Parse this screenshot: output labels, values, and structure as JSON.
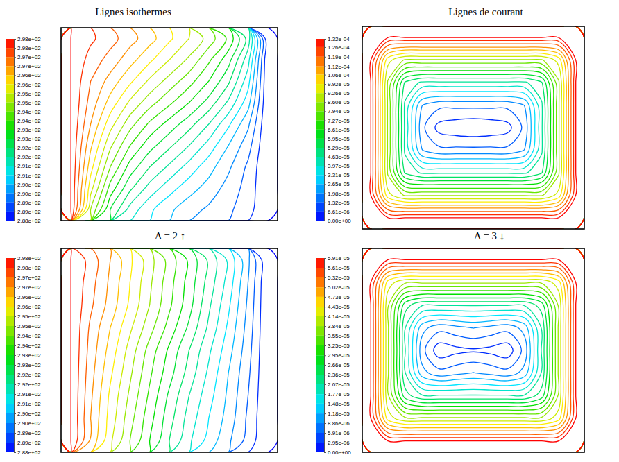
{
  "column_titles": [
    "Lignes isothermes",
    "Lignes de courant"
  ],
  "row_labels": [
    "A = 2 ↑",
    "A = 3 ↓"
  ],
  "chart_data": [
    {
      "type": "contour",
      "grid": [
        [
          298,
          297.6,
          297.2,
          296.7,
          296.2,
          295.6,
          295.0,
          294.3,
          293.4,
          291.8,
          288
        ],
        [
          298,
          297.3,
          296.8,
          296.2,
          295.6,
          295.0,
          294.4,
          293.6,
          292.7,
          291.2,
          288
        ],
        [
          298,
          297.0,
          296.3,
          295.6,
          294.9,
          294.3,
          293.7,
          293.0,
          292.1,
          290.7,
          288
        ],
        [
          298,
          296.8,
          295.8,
          294.9,
          294.2,
          293.6,
          293.0,
          292.3,
          291.4,
          290.2,
          288
        ],
        [
          298,
          296.5,
          295.2,
          294.2,
          293.4,
          292.8,
          292.2,
          291.5,
          290.6,
          289.6,
          288
        ],
        [
          298,
          296.1,
          294.6,
          293.5,
          292.7,
          292.1,
          291.5,
          290.8,
          290.0,
          289.2,
          288
        ],
        [
          298,
          295.7,
          294.0,
          292.8,
          292.0,
          291.4,
          290.8,
          290.2,
          289.6,
          288.9,
          288
        ],
        [
          298,
          295.2,
          293.3,
          292.1,
          291.3,
          290.7,
          290.2,
          289.8,
          289.3,
          288.8,
          288
        ],
        [
          298,
          294.5,
          292.5,
          291.3,
          290.6,
          290.1,
          289.7,
          289.4,
          289.1,
          288.7,
          288
        ]
      ],
      "colorbar": {
        "range": [
          288,
          298
        ],
        "ticks": [
          {
            "value": 298,
            "label": "2.98e+02"
          },
          {
            "value": 297.5,
            "label": "2.98e+02"
          },
          {
            "value": 297,
            "label": "2.97e+02"
          },
          {
            "value": 296.5,
            "label": "2.97e+02"
          },
          {
            "value": 296,
            "label": "2.96e+02"
          },
          {
            "value": 295.5,
            "label": "2.96e+02"
          },
          {
            "value": 295,
            "label": "2.95e+02"
          },
          {
            "value": 294.5,
            "label": "2.95e+02"
          },
          {
            "value": 294,
            "label": "2.94e+02"
          },
          {
            "value": 293.5,
            "label": "2.94e+02"
          },
          {
            "value": 293,
            "label": "2.93e+02"
          },
          {
            "value": 292.5,
            "label": "2.93e+02"
          },
          {
            "value": 292,
            "label": "2.92e+02"
          },
          {
            "value": 291.5,
            "label": "2.92e+02"
          },
          {
            "value": 291,
            "label": "2.91e+02"
          },
          {
            "value": 290.5,
            "label": "2.91e+02"
          },
          {
            "value": 290,
            "label": "2.90e+02"
          },
          {
            "value": 289.5,
            "label": "2.90e+02"
          },
          {
            "value": 289,
            "label": "2.89e+02"
          },
          {
            "value": 288.5,
            "label": "2.89e+02"
          },
          {
            "value": 288,
            "label": "2.88e+02"
          }
        ]
      }
    },
    {
      "type": "contour",
      "grid": [
        [
          0.000132,
          0.000132,
          0.000132,
          0.000132,
          0.000132,
          0.000132,
          0.000132,
          0.000132,
          0.000132,
          0.000132,
          0.000132,
          0.000132,
          0.000132
        ],
        [
          0.000132,
          9.5e-05,
          8.5e-05,
          8.5e-05,
          8.5e-05,
          8.5e-05,
          8.5e-05,
          8.5e-05,
          8.5e-05,
          8.5e-05,
          8.5e-05,
          9.5e-05,
          0.000132
        ],
        [
          0.000132,
          8.5e-05,
          5.2e-05,
          4.5e-05,
          4.5e-05,
          4.5e-05,
          4.5e-05,
          4.5e-05,
          4.5e-05,
          4.5e-05,
          5.2e-05,
          8.5e-05,
          0.000132
        ],
        [
          0.000132,
          8.5e-05,
          4.5e-05,
          2e-05,
          1.5e-05,
          1.5e-05,
          1.5e-05,
          1.5e-05,
          1.5e-05,
          2e-05,
          4.5e-05,
          8.5e-05,
          0.000132
        ],
        [
          0.000132,
          8.5e-05,
          4.5e-05,
          1.5e-05,
          4e-06,
          2e-06,
          1e-06,
          2e-06,
          4e-06,
          1.5e-05,
          4.5e-05,
          8.5e-05,
          0.000132
        ],
        [
          0.000132,
          8.5e-05,
          4.5e-05,
          2e-05,
          1.5e-05,
          1.5e-05,
          1.5e-05,
          1.5e-05,
          1.5e-05,
          2e-05,
          4.5e-05,
          8.5e-05,
          0.000132
        ],
        [
          0.000132,
          8.5e-05,
          5.2e-05,
          4.5e-05,
          4.5e-05,
          4.5e-05,
          4.5e-05,
          4.5e-05,
          4.5e-05,
          4.5e-05,
          5.2e-05,
          8.5e-05,
          0.000132
        ],
        [
          0.000132,
          9.5e-05,
          8.5e-05,
          8.5e-05,
          8.5e-05,
          8.5e-05,
          8.5e-05,
          8.5e-05,
          8.5e-05,
          8.5e-05,
          8.5e-05,
          9.5e-05,
          0.000132
        ],
        [
          0.000132,
          0.000132,
          0.000132,
          0.000132,
          0.000132,
          0.000132,
          0.000132,
          0.000132,
          0.000132,
          0.000132,
          0.000132,
          0.000132,
          0.000132
        ]
      ],
      "colorbar": {
        "range": [
          0,
          0.000132
        ],
        "ticks": [
          {
            "value": 0.000132,
            "label": "1.32e-04"
          },
          {
            "value": 0.000126,
            "label": "1.26e-04"
          },
          {
            "value": 0.000119,
            "label": "1.19e-04"
          },
          {
            "value": 0.000112,
            "label": "1.12e-04"
          },
          {
            "value": 0.000106,
            "label": "1.06e-04"
          },
          {
            "value": 9.92e-05,
            "label": "9.92e-05"
          },
          {
            "value": 9.26e-05,
            "label": "9.26e-05"
          },
          {
            "value": 8.6e-05,
            "label": "8.60e-05"
          },
          {
            "value": 7.94e-05,
            "label": "7.94e-05"
          },
          {
            "value": 7.27e-05,
            "label": "7.27e-05"
          },
          {
            "value": 6.61e-05,
            "label": "6.61e-05"
          },
          {
            "value": 5.95e-05,
            "label": "5.95e-05"
          },
          {
            "value": 5.29e-05,
            "label": "5.29e-05"
          },
          {
            "value": 4.63e-05,
            "label": "4.63e-05"
          },
          {
            "value": 3.97e-05,
            "label": "3.97e-05"
          },
          {
            "value": 3.31e-05,
            "label": "3.31e-05"
          },
          {
            "value": 2.65e-05,
            "label": "2.65e-05"
          },
          {
            "value": 1.98e-05,
            "label": "1.98e-05"
          },
          {
            "value": 1.32e-05,
            "label": "1.32e-05"
          },
          {
            "value": 6.61e-06,
            "label": "6.61e-06"
          },
          {
            "value": 0,
            "label": "0.00e+00"
          }
        ]
      }
    },
    {
      "type": "contour",
      "grid": [
        [
          298,
          297.3,
          296.5,
          295.6,
          294.7,
          293.8,
          292.9,
          291.9,
          290.9,
          289.6,
          288
        ],
        [
          298,
          297.2,
          296.4,
          295.5,
          294.6,
          293.7,
          292.8,
          291.8,
          290.8,
          289.5,
          288
        ],
        [
          298,
          297.1,
          296.3,
          295.4,
          294.5,
          293.6,
          292.7,
          291.6,
          290.6,
          289.4,
          288
        ],
        [
          298,
          296.9,
          296.0,
          295.1,
          294.2,
          293.3,
          292.4,
          291.4,
          290.4,
          289.3,
          288
        ],
        [
          298,
          296.8,
          295.8,
          294.8,
          293.8,
          292.9,
          292.0,
          291.1,
          290.2,
          289.2,
          288
        ],
        [
          298,
          296.7,
          295.6,
          294.6,
          293.6,
          292.7,
          291.8,
          290.9,
          290.0,
          289.1,
          288
        ],
        [
          298,
          296.6,
          295.4,
          294.4,
          293.4,
          292.4,
          291.5,
          290.7,
          289.9,
          289.0,
          288
        ],
        [
          298,
          296.5,
          295.3,
          294.2,
          293.2,
          292.2,
          291.3,
          290.5,
          289.8,
          288.9,
          288
        ],
        [
          298,
          296.4,
          295.1,
          294.0,
          293.0,
          292.0,
          291.1,
          290.3,
          289.6,
          288.8,
          288
        ]
      ],
      "colorbar": {
        "range": [
          288,
          298
        ],
        "ticks": [
          {
            "value": 298,
            "label": "2.98e+02"
          },
          {
            "value": 297.5,
            "label": "2.98e+02"
          },
          {
            "value": 297,
            "label": "2.97e+02"
          },
          {
            "value": 296.5,
            "label": "2.97e+02"
          },
          {
            "value": 296,
            "label": "2.96e+02"
          },
          {
            "value": 295.5,
            "label": "2.96e+02"
          },
          {
            "value": 295,
            "label": "2.95e+02"
          },
          {
            "value": 294.5,
            "label": "2.95e+02"
          },
          {
            "value": 294,
            "label": "2.94e+02"
          },
          {
            "value": 293.5,
            "label": "2.94e+02"
          },
          {
            "value": 293,
            "label": "2.93e+02"
          },
          {
            "value": 292.5,
            "label": "2.93e+02"
          },
          {
            "value": 292,
            "label": "2.92e+02"
          },
          {
            "value": 291.5,
            "label": "2.92e+02"
          },
          {
            "value": 291,
            "label": "2.91e+02"
          },
          {
            "value": 290.5,
            "label": "2.91e+02"
          },
          {
            "value": 290,
            "label": "2.90e+02"
          },
          {
            "value": 289.5,
            "label": "2.90e+02"
          },
          {
            "value": 289,
            "label": "2.89e+02"
          },
          {
            "value": 288.5,
            "label": "2.89e+02"
          },
          {
            "value": 288,
            "label": "2.88e+02"
          }
        ]
      }
    },
    {
      "type": "contour",
      "grid": [
        [
          5.91e-05,
          5.91e-05,
          5.91e-05,
          5.91e-05,
          5.91e-05,
          5.91e-05,
          5.91e-05,
          5.91e-05,
          5.91e-05,
          5.91e-05,
          5.91e-05,
          5.91e-05,
          5.91e-05
        ],
        [
          5.91e-05,
          4.3e-05,
          3.9e-05,
          3.9e-05,
          3.9e-05,
          3.9e-05,
          3.9e-05,
          3.9e-05,
          3.9e-05,
          3.9e-05,
          3.9e-05,
          4.3e-05,
          5.91e-05
        ],
        [
          5.91e-05,
          3.9e-05,
          2.5e-05,
          2.1e-05,
          2.1e-05,
          2.1e-05,
          2.1e-05,
          2.1e-05,
          2.1e-05,
          2.1e-05,
          2.5e-05,
          3.9e-05,
          5.91e-05
        ],
        [
          5.91e-05,
          3.9e-05,
          2.1e-05,
          1e-05,
          7e-06,
          8e-06,
          9e-06,
          8e-06,
          7e-06,
          1e-05,
          2.1e-05,
          3.9e-05,
          5.91e-05
        ],
        [
          5.91e-05,
          3.9e-05,
          2.1e-05,
          7e-06,
          1e-06,
          2e-06,
          2.5e-06,
          2e-06,
          1e-06,
          7e-06,
          2.1e-05,
          3.9e-05,
          5.91e-05
        ],
        [
          5.91e-05,
          3.9e-05,
          2.1e-05,
          1e-05,
          7e-06,
          8e-06,
          9e-06,
          8e-06,
          7e-06,
          1e-05,
          2.1e-05,
          3.9e-05,
          5.91e-05
        ],
        [
          5.91e-05,
          3.9e-05,
          2.5e-05,
          2.1e-05,
          2.1e-05,
          2.1e-05,
          2.1e-05,
          2.1e-05,
          2.1e-05,
          2.1e-05,
          2.5e-05,
          3.9e-05,
          5.91e-05
        ],
        [
          5.91e-05,
          4.3e-05,
          3.9e-05,
          3.9e-05,
          3.9e-05,
          3.9e-05,
          3.9e-05,
          3.9e-05,
          3.9e-05,
          3.9e-05,
          3.9e-05,
          4.3e-05,
          5.91e-05
        ],
        [
          5.91e-05,
          5.91e-05,
          5.91e-05,
          5.91e-05,
          5.91e-05,
          5.91e-05,
          5.91e-05,
          5.91e-05,
          5.91e-05,
          5.91e-05,
          5.91e-05,
          5.91e-05,
          5.91e-05
        ]
      ],
      "colorbar": {
        "range": [
          0,
          5.91e-05
        ],
        "ticks": [
          {
            "value": 5.91e-05,
            "label": "5.91e-05"
          },
          {
            "value": 5.61e-05,
            "label": "5.61e-05"
          },
          {
            "value": 5.32e-05,
            "label": "5.32e-05"
          },
          {
            "value": 5.02e-05,
            "label": "5.02e-05"
          },
          {
            "value": 4.73e-05,
            "label": "4.73e-05"
          },
          {
            "value": 4.43e-05,
            "label": "4.43e-05"
          },
          {
            "value": 4.14e-05,
            "label": "4.14e-05"
          },
          {
            "value": 3.84e-05,
            "label": "3.84e-05"
          },
          {
            "value": 3.55e-05,
            "label": "3.55e-05"
          },
          {
            "value": 3.25e-05,
            "label": "3.25e-05"
          },
          {
            "value": 2.95e-05,
            "label": "2.95e-05"
          },
          {
            "value": 2.66e-05,
            "label": "2.66e-05"
          },
          {
            "value": 2.36e-05,
            "label": "2.36e-05"
          },
          {
            "value": 2.07e-05,
            "label": "2.07e-05"
          },
          {
            "value": 1.77e-05,
            "label": "1.77e-05"
          },
          {
            "value": 1.48e-05,
            "label": "1.48e-05"
          },
          {
            "value": 1.18e-05,
            "label": "1.18e-05"
          },
          {
            "value": 8.86e-06,
            "label": "8.86e-06"
          },
          {
            "value": 5.91e-06,
            "label": "5.91e-06"
          },
          {
            "value": 2.95e-06,
            "label": "2.95e-06"
          },
          {
            "value": 0,
            "label": "0.00e+00"
          }
        ]
      }
    }
  ]
}
